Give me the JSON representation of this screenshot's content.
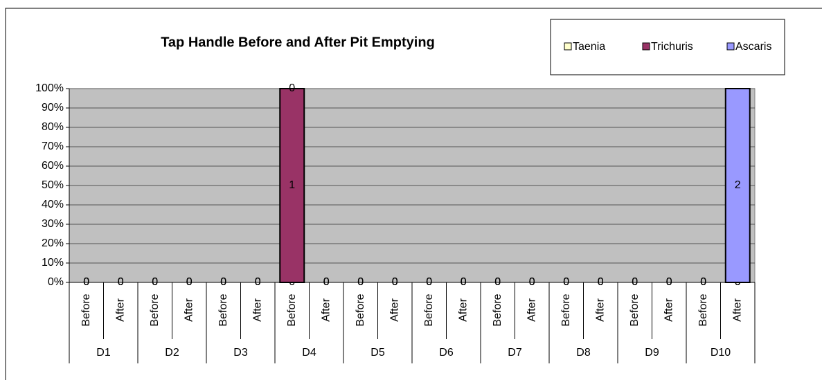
{
  "chart_data": {
    "type": "stacked_bar_percent",
    "title": "Tap Handle Before and After Pit Emptying",
    "groups": [
      "D1",
      "D2",
      "D3",
      "D4",
      "D5",
      "D6",
      "D7",
      "D8",
      "D9",
      "D10"
    ],
    "categories": [
      "Before",
      "After",
      "Before",
      "After",
      "Before",
      "After",
      "Before",
      "After",
      "Before",
      "After",
      "Before",
      "After",
      "Before",
      "After",
      "Before",
      "After",
      "Before",
      "After",
      "Before",
      "After"
    ],
    "series": [
      {
        "name": "Taenia",
        "color": "#ffffcc",
        "values": [
          0,
          0,
          0,
          0,
          0,
          0,
          0,
          0,
          0,
          0,
          0,
          0,
          0,
          0,
          0,
          0,
          0,
          0,
          0,
          0
        ]
      },
      {
        "name": "Trichuris",
        "color": "#993366",
        "values": [
          0,
          0,
          0,
          0,
          0,
          0,
          1,
          0,
          0,
          0,
          0,
          0,
          0,
          0,
          0,
          0,
          0,
          0,
          0,
          0
        ]
      },
      {
        "name": "Ascaris",
        "color": "#9999ff",
        "values": [
          0,
          0,
          0,
          0,
          0,
          0,
          0,
          0,
          0,
          0,
          0,
          0,
          0,
          0,
          0,
          0,
          0,
          0,
          0,
          2
        ]
      }
    ],
    "ylim": [
      0,
      100
    ],
    "yticks": [
      {
        "value": 0,
        "label": "0%"
      },
      {
        "value": 10,
        "label": "10%"
      },
      {
        "value": 20,
        "label": "20%"
      },
      {
        "value": 30,
        "label": "30%"
      },
      {
        "value": 40,
        "label": "40%"
      },
      {
        "value": 50,
        "label": "50%"
      },
      {
        "value": 60,
        "label": "60%"
      },
      {
        "value": 70,
        "label": "70%"
      },
      {
        "value": 80,
        "label": "80%"
      },
      {
        "value": 90,
        "label": "90%"
      },
      {
        "value": 100,
        "label": "100%"
      }
    ],
    "grid": true,
    "legend": "top-right",
    "plot_background": "#c0c0c0"
  }
}
